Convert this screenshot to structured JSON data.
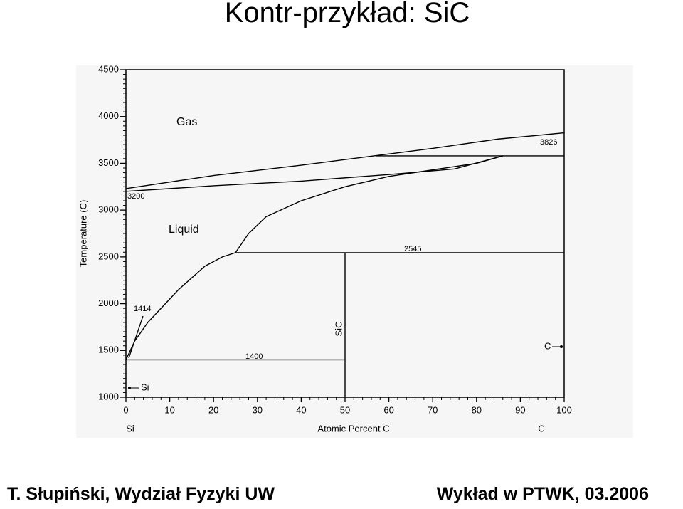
{
  "header": {
    "title": "Kontr-przykład: SiC"
  },
  "chart_data": {
    "type": "line",
    "xlabel": "Atomic Percent  C",
    "ylabel": "Temperature (C)",
    "xlim": [
      0,
      100
    ],
    "xticks": [
      0,
      10,
      20,
      30,
      40,
      50,
      60,
      70,
      80,
      90,
      100
    ],
    "ylim": [
      1000,
      4500
    ],
    "yticks": [
      1000,
      1500,
      2000,
      2500,
      3000,
      3500,
      4000,
      4500
    ],
    "color": "#000000",
    "series": [
      {
        "x": [
          0,
          20,
          40,
          55,
          70,
          85,
          100
        ],
        "values": [
          3230,
          3370,
          3480,
          3570,
          3660,
          3760,
          3826
        ]
      },
      {
        "x": [
          0,
          20,
          40,
          60,
          75,
          86
        ],
        "values": [
          3200,
          3260,
          3310,
          3380,
          3440,
          3580
        ]
      },
      {
        "x": [
          57,
          100
        ],
        "values": [
          3580,
          3580
        ]
      },
      {
        "x": [
          0,
          2,
          5,
          12,
          18,
          22,
          25,
          28,
          32,
          40,
          50,
          60,
          70,
          80,
          86
        ],
        "values": [
          1400,
          1600,
          1800,
          2150,
          2400,
          2500,
          2545,
          2750,
          2930,
          3100,
          3250,
          3360,
          3430,
          3500,
          3580
        ]
      },
      {
        "x": [
          25,
          100
        ],
        "values": [
          2545,
          2545
        ]
      },
      {
        "x": [
          50,
          50
        ],
        "values": [
          1000,
          2545
        ]
      },
      {
        "x": [
          0,
          50
        ],
        "values": [
          1400,
          1400
        ]
      }
    ],
    "annotations": [
      "Gas",
      "Liquid",
      "3200",
      "3826",
      "2545",
      "1414",
      "1400",
      "SiC",
      "Si",
      "C",
      "Si",
      "C"
    ]
  },
  "footer": {
    "left": "T. Słupiński, Wydział Fyzyki UW",
    "right": "Wykład w PTWK, 03.2006"
  }
}
